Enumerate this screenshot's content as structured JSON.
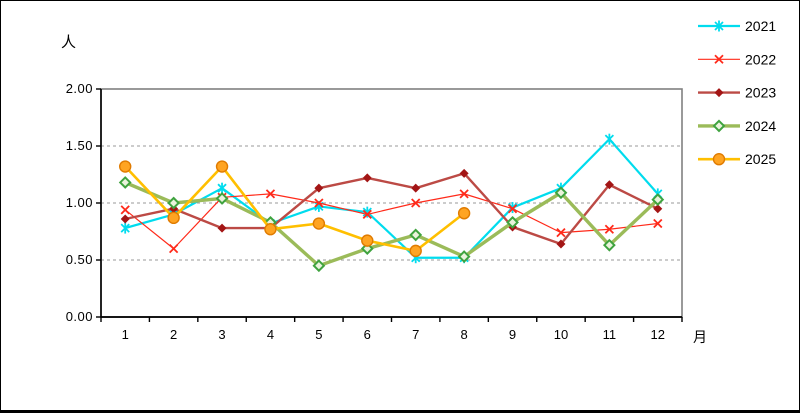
{
  "page": {
    "background": "#ffffff",
    "border_color": "#000000"
  },
  "chart_data": {
    "type": "line",
    "title": "",
    "ylabel": "人",
    "xlabel": "月",
    "ylim": [
      0,
      2
    ],
    "ytick_values": [
      2.0,
      1.5,
      1.0,
      0.5,
      0.0
    ],
    "ytick_labels": [
      "2.00",
      "1.50",
      "1.00",
      "0.50",
      "0.00"
    ],
    "categories": [
      "1",
      "2",
      "3",
      "4",
      "5",
      "6",
      "7",
      "8",
      "9",
      "10",
      "11",
      "12"
    ],
    "grid": "horizontal-dashed",
    "grid_color": "#999999",
    "plot_border_color": "#808080",
    "axis_color": "#000000",
    "legend_position": "right",
    "series": [
      {
        "name": "2021",
        "color": "#00dcee",
        "marker": "star",
        "marker_color": "#00dcee",
        "line_width": 2.2,
        "values": [
          0.78,
          0.9,
          1.13,
          0.82,
          0.97,
          0.92,
          0.52,
          0.52,
          0.96,
          1.13,
          1.56,
          1.08
        ]
      },
      {
        "name": "2022",
        "color": "#ff2a1a",
        "marker": "x",
        "marker_color": "#ff2a1a",
        "line_width": 1.2,
        "values": [
          0.94,
          0.6,
          1.05,
          1.08,
          1.0,
          0.9,
          1.0,
          1.08,
          0.95,
          0.74,
          0.77,
          0.82
        ]
      },
      {
        "name": "2023",
        "color": "#bc4a45",
        "marker": "diamond-filled",
        "marker_color": "#a31515",
        "line_width": 2.4,
        "values": [
          0.86,
          0.95,
          0.78,
          0.78,
          1.13,
          1.22,
          1.13,
          1.26,
          0.79,
          0.64,
          1.16,
          0.95
        ]
      },
      {
        "name": "2024",
        "color": "#9bbb59",
        "marker": "diamond-open",
        "marker_color": "#3fa33f",
        "line_width": 3.4,
        "values": [
          1.18,
          1.0,
          1.04,
          0.83,
          0.45,
          0.6,
          0.72,
          0.53,
          0.83,
          1.09,
          0.63,
          1.03
        ]
      },
      {
        "name": "2025",
        "color": "#ffbf00",
        "marker": "circle",
        "marker_color": "#ffa422",
        "marker_edge_color": "#e07b00",
        "line_width": 2.6,
        "values": [
          1.32,
          0.87,
          1.32,
          0.77,
          0.82,
          0.67,
          0.58,
          0.91
        ]
      }
    ]
  }
}
